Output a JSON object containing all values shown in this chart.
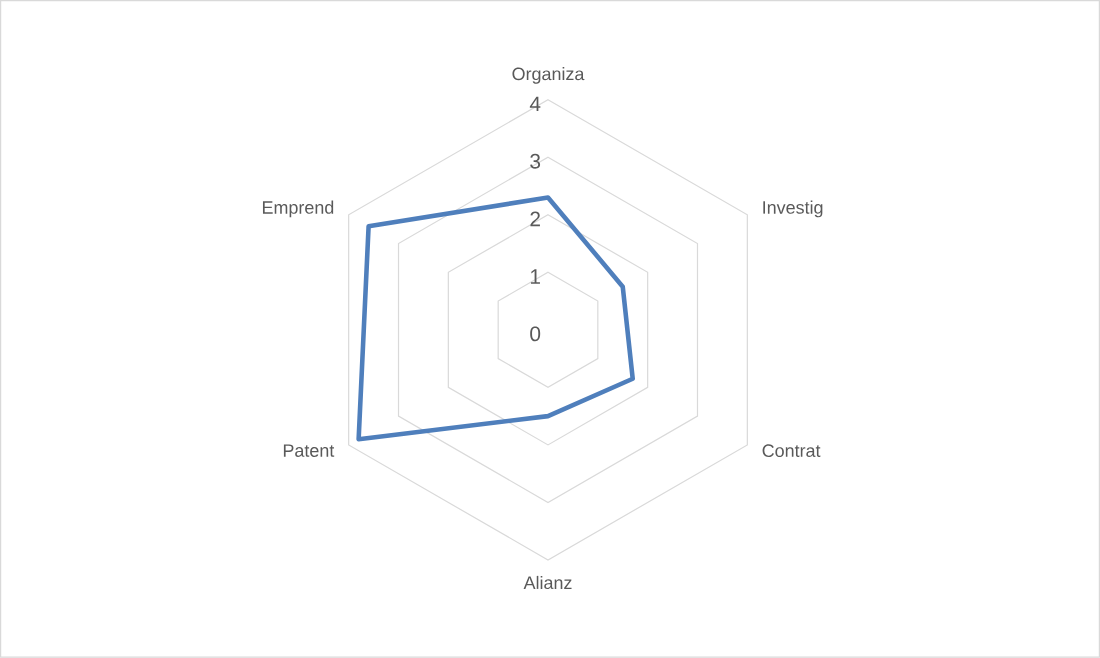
{
  "chart_data": {
    "type": "radar",
    "categories": [
      "Organiza",
      "Investig",
      "Contrat",
      "Alianz",
      "Patent",
      "Emprend"
    ],
    "series": [
      {
        "color": "#4f7fbc",
        "values": [
          2.3,
          1.5,
          1.7,
          1.5,
          3.8,
          3.6
        ]
      }
    ],
    "ylim": [
      0,
      4
    ],
    "yticks": [
      0,
      1,
      2,
      3,
      4
    ],
    "grid": true
  }
}
